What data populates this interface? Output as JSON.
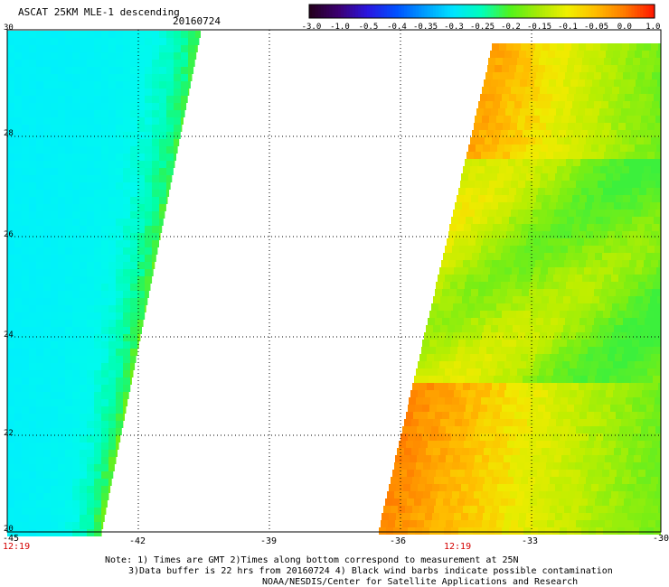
{
  "header": {
    "title": "ASCAT 25KM MLE-1 descending",
    "date": "20160724"
  },
  "colorbar": {
    "labels": [
      "-3.0",
      "-1.0",
      "-0.5",
      "-0.4",
      "-0.35",
      "-0.3",
      "-0.25",
      "-0.2",
      "-0.15",
      "-0.1",
      "-0.05",
      "0.0",
      "1.0"
    ],
    "colors": [
      "#25001f",
      "#3c0073",
      "#2a16e0",
      "#0050ff",
      "#009dff",
      "#00e4ff",
      "#00ffba",
      "#52f21a",
      "#a9ea05",
      "#f0f000",
      "#ffbc00",
      "#ff7a00",
      "#ff1a00"
    ]
  },
  "map": {
    "lon_ticks": [
      "-45",
      "-42",
      "-39",
      "-36",
      "-33",
      "-30"
    ],
    "lat_ticks": [
      "30",
      "28",
      "26",
      "24",
      "22",
      "20"
    ],
    "time_labels": [
      "12:19",
      "12:19"
    ]
  },
  "notes": [
    "Note: 1) Times are GMT 2)Times along bottom correspond to measurement at 25N",
    "3)Data buffer is 22 hrs from 20160724 4) Black wind barbs indicate possible contamination",
    "NOAA/NESDIS/Center for Satellite Applications and Research"
  ]
}
